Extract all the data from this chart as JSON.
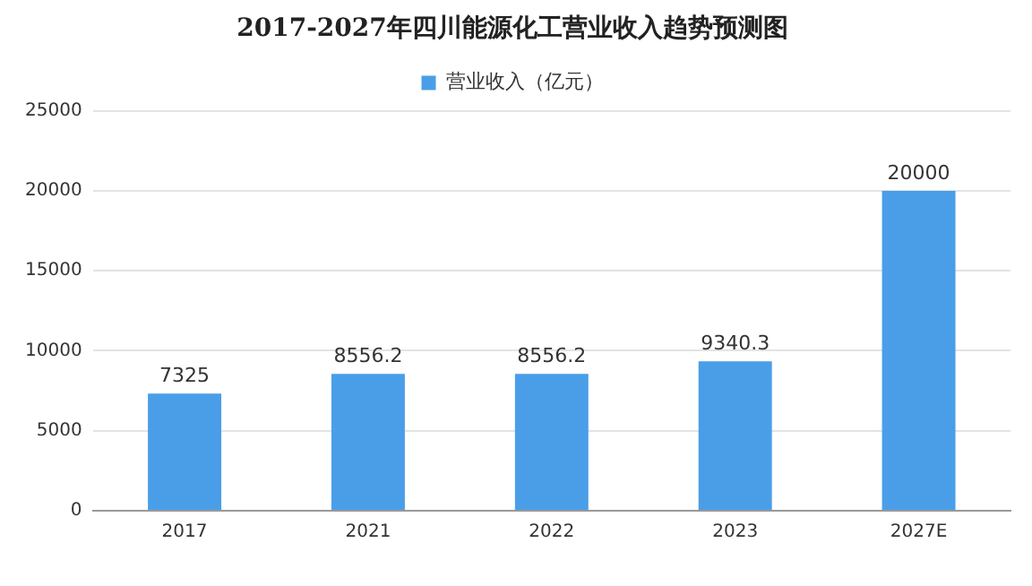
{
  "chart_data": {
    "type": "bar",
    "title": "2017-2027年四川能源化工营业收入趋势预测图",
    "categories": [
      "2017",
      "2021",
      "2022",
      "2023",
      "2027E"
    ],
    "series": [
      {
        "name": "营业收入（亿元）",
        "color": "#4a9ee8",
        "values": [
          7325,
          8556.2,
          8556.2,
          9340.3,
          20000
        ]
      }
    ],
    "ylim": [
      0,
      25000
    ],
    "yticks": [
      0,
      5000,
      10000,
      15000,
      20000,
      25000
    ],
    "grid": "y",
    "legend": "top",
    "data_labels": true
  }
}
